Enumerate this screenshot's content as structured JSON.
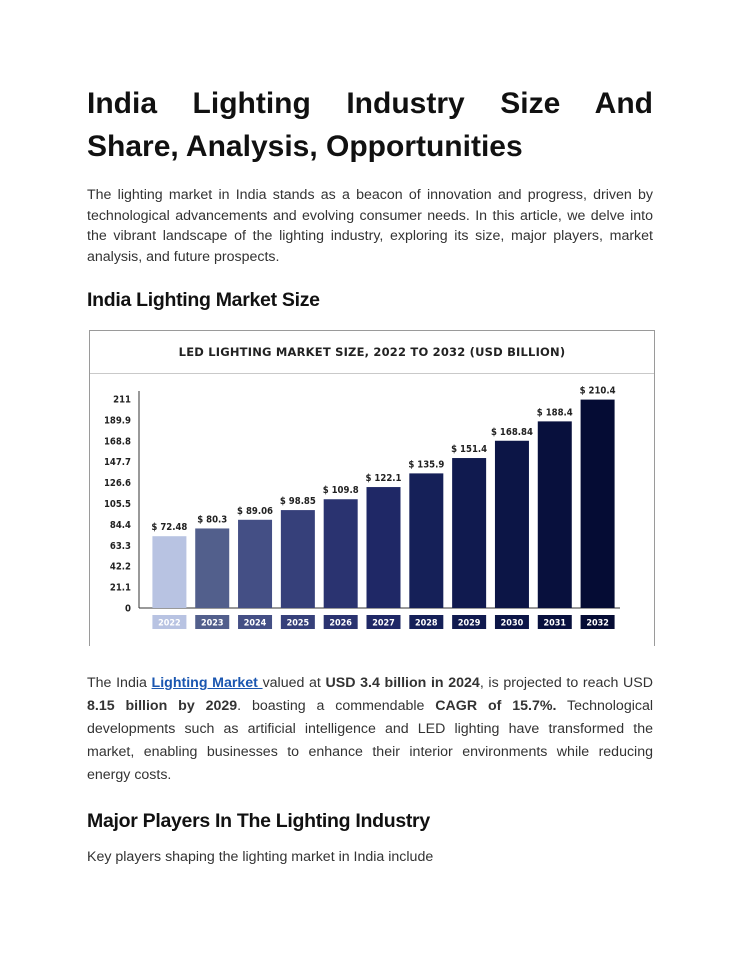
{
  "article": {
    "title_line1": "India Lighting Industry Size And",
    "title_line2": "Share, Analysis, Opportunities",
    "intro": "The lighting market in India stands as a beacon of innovation and progress, driven by technological advancements and evolving consumer needs. In this article, we delve into the vibrant landscape of the lighting industry, exploring its size, major players, market analysis, and future prospects.",
    "section1_heading": "India Lighting Market Size",
    "para2": {
      "l1_a": "The India ",
      "l1_link": "Lighting Market ",
      "l1_b": "valued at ",
      "l1_bold": "USD 3.4 billion in 2024",
      "l1_c": ", is projected to reach USD",
      "l2_bold1": "8.15 billion by 2029",
      "l2_a": ". boasting a commendable ",
      "l2_bold2": "CAGR of 15.7%.",
      "l2_b": " Technological",
      "l3": "developments such as artificial intelligence and LED lighting have transformed the",
      "l4": "market, enabling businesses to enhance their interior environments while reducing",
      "l5": "energy costs."
    },
    "section2_heading": "Major Players In The Lighting Industry",
    "para3": "Key players shaping the lighting market in India include"
  },
  "chart_data": {
    "type": "bar",
    "title": "LED LIGHTING MARKET SIZE, 2022 TO 2032 (USD BILLION)",
    "categories": [
      "2022",
      "2023",
      "2024",
      "2025",
      "2026",
      "2027",
      "2028",
      "2029",
      "2030",
      "2031",
      "2032"
    ],
    "values": [
      72.48,
      80.3,
      89.06,
      98.85,
      109.8,
      122.1,
      135.9,
      151.4,
      168.84,
      188.4,
      210.4
    ],
    "value_labels": [
      "$ 72.48",
      "$ 80.3",
      "$ 89.06",
      "$ 98.85",
      "$ 109.8",
      "$ 122.1",
      "$ 135.9",
      "$ 151.4",
      "$ 168.84",
      "$ 188.4",
      "$ 210.4"
    ],
    "yticks": [
      "0",
      "21.1",
      "42.2",
      "63.3",
      "84.4",
      "105.5",
      "126.6",
      "147.7",
      "168.8",
      "189.9",
      "211"
    ],
    "ylim": [
      0,
      211
    ],
    "xlabel": "",
    "ylabel": "",
    "grid": false,
    "colors": [
      "#b8c3e2",
      "#525f8c",
      "#444f85",
      "#36407a",
      "#2a3370",
      "#1f2866",
      "#152058",
      "#101a4f",
      "#0c1546",
      "#08103d",
      "#050c34"
    ]
  }
}
